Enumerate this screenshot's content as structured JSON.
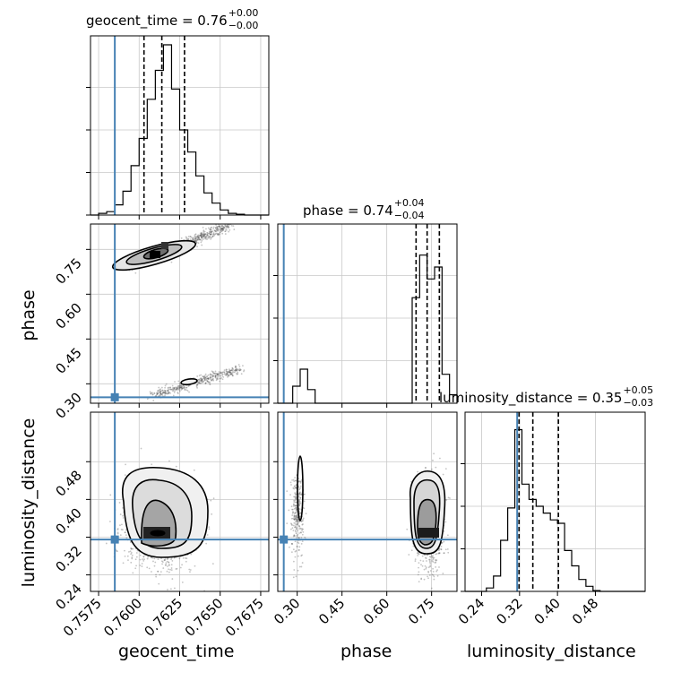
{
  "chart_data": {
    "type": "corner",
    "parameters": [
      "geocent_time",
      "phase",
      "luminosity_distance"
    ],
    "truths": {
      "geocent_time": 0.7585,
      "phase": 0.255,
      "luminosity_distance": 0.315
    },
    "ranges": {
      "geocent_time": [
        0.757,
        0.768
      ],
      "phase": [
        0.235,
        0.835
      ],
      "luminosity_distance": [
        0.205,
        0.585
      ]
    },
    "ticks": {
      "geocent_time": [
        "0.7575",
        "0.7600",
        "0.7625",
        "0.7650",
        "0.7675"
      ],
      "phase": [
        "0.30",
        "0.45",
        "0.60",
        "0.75"
      ],
      "luminosity_distance": [
        "0.24",
        "0.32",
        "0.40",
        "0.48"
      ]
    },
    "grid": true,
    "titles": {
      "geocent_time": {
        "prefix": "geocent_time = 0.76",
        "plus": "+0.00",
        "minus": "−0.00"
      },
      "phase": {
        "prefix": "phase = 0.74",
        "plus": "+0.04",
        "minus": "−0.04"
      },
      "luminosity_distance": {
        "prefix": "luminosity_distance = 0.35",
        "plus": "+0.05",
        "minus": "−0.03"
      }
    },
    "axis_labels": {
      "x_geocent_time": "geocent_time",
      "x_phase": "phase",
      "x_luminosity_distance": "luminosity_distance",
      "y_phase": "phase",
      "y_luminosity_distance": "luminosity_distance"
    },
    "quantiles": {
      "geocent_time": [
        0.7603,
        0.7614,
        0.7628
      ],
      "phase": [
        0.698,
        0.735,
        0.776
      ],
      "luminosity_distance": [
        0.319,
        0.348,
        0.402
      ]
    },
    "histograms": {
      "geocent_time": {
        "edges": [
          0.757,
          0.7575,
          0.758,
          0.7585,
          0.759,
          0.7595,
          0.76,
          0.7605,
          0.761,
          0.7615,
          0.762,
          0.7625,
          0.763,
          0.7635,
          0.764,
          0.7645,
          0.765,
          0.7655,
          0.766,
          0.7665,
          0.767,
          0.7675,
          0.768
        ],
        "counts": [
          0,
          0.01,
          0.02,
          0.06,
          0.14,
          0.29,
          0.45,
          0.68,
          0.85,
          1.0,
          0.74,
          0.5,
          0.37,
          0.23,
          0.13,
          0.07,
          0.03,
          0.01,
          0.005,
          0,
          0,
          0
        ]
      },
      "phase": {
        "edges": [
          0.235,
          0.26,
          0.285,
          0.31,
          0.335,
          0.36,
          0.385,
          0.41,
          0.435,
          0.46,
          0.485,
          0.51,
          0.535,
          0.56,
          0.585,
          0.61,
          0.635,
          0.66,
          0.685,
          0.71,
          0.735,
          0.76,
          0.785,
          0.81,
          0.835
        ],
        "counts": [
          0,
          0,
          0.1,
          0.2,
          0.08,
          0,
          0,
          0,
          0,
          0,
          0,
          0,
          0,
          0,
          0,
          0,
          0,
          0,
          0.62,
          0.87,
          0.73,
          0.8,
          0.17,
          0.05
        ]
      },
      "luminosity_distance": {
        "edges": [
          0.205,
          0.22,
          0.235,
          0.25,
          0.265,
          0.28,
          0.295,
          0.31,
          0.325,
          0.34,
          0.355,
          0.37,
          0.385,
          0.4,
          0.415,
          0.43,
          0.445,
          0.46,
          0.475,
          0.49,
          0.505,
          0.52,
          0.535,
          0.55,
          0.565,
          0.585
        ],
        "counts": [
          0,
          0,
          0,
          0.02,
          0.09,
          0.3,
          0.49,
          0.95,
          0.63,
          0.54,
          0.5,
          0.46,
          0.42,
          0.4,
          0.24,
          0.15,
          0.07,
          0.03,
          0.005,
          0,
          0,
          0,
          0,
          0,
          0
        ]
      }
    },
    "samples": {
      "geocent_time_vs_phase": {
        "modes": [
          {
            "x": [
              0.7595,
              0.7655
            ],
            "y": [
              0.69,
              0.83
            ],
            "count": 700
          },
          {
            "x": [
              0.7608,
              0.7662
            ],
            "y": [
              0.26,
              0.35
            ],
            "count": 450
          }
        ]
      },
      "geocent_time_vs_luminosity_distance": {
        "center": [
          0.7614,
          0.345
        ],
        "spread": [
          0.0011,
          0.045
        ],
        "count": 1400
      },
      "phase_vs_luminosity_distance": {
        "modes": [
          {
            "center": [
              0.3,
              0.37
            ],
            "spread": [
              0.01,
              0.045
            ],
            "count": 300
          },
          {
            "center": [
              0.745,
              0.35
            ],
            "spread": [
              0.022,
              0.045
            ],
            "count": 1100
          }
        ]
      }
    },
    "colors": {
      "truth": "#4682b4",
      "hist": "#000000",
      "grid": "#c8c8c8",
      "points": "#555555"
    }
  }
}
